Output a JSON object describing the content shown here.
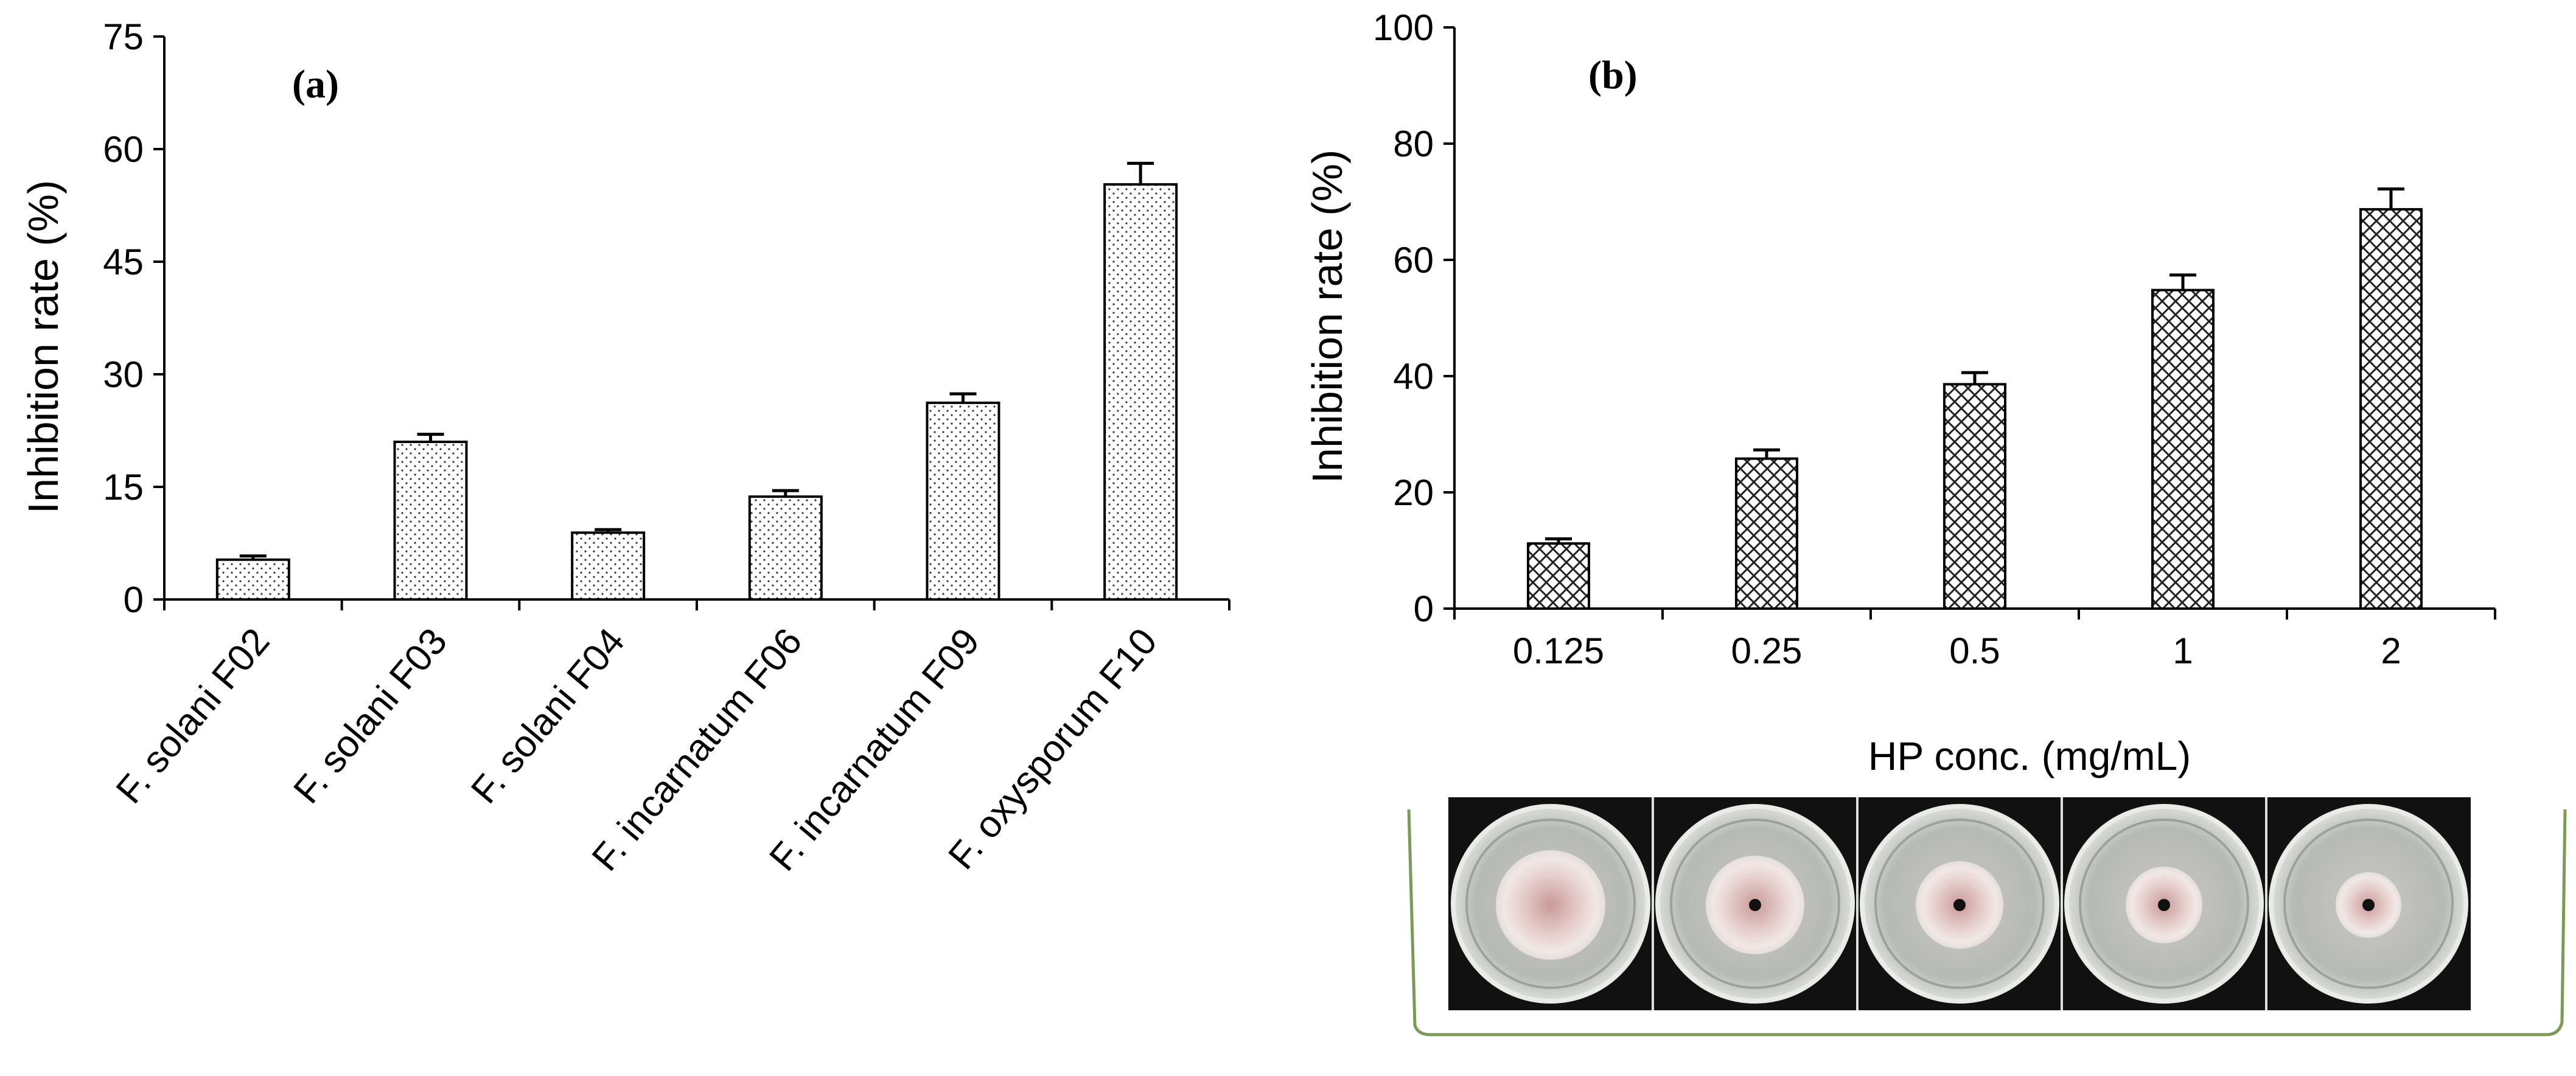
{
  "chart_data": [
    {
      "type": "bar",
      "panel_label": "(a)",
      "categories": [
        "F. solani F02",
        "F. solani F03",
        "F. solani F04",
        "F. incarnatum F06",
        "F. incarnatum F09",
        "F. oxysporum F10"
      ],
      "values": [
        5.3,
        21.0,
        8.9,
        13.7,
        26.2,
        55.3
      ],
      "errors": [
        0.5,
        1.0,
        0.4,
        0.8,
        1.2,
        2.8
      ],
      "ylabel": "Inhibition rate (%)",
      "xlabel": "",
      "ylim": [
        0,
        75
      ],
      "yticks": [
        "0",
        "15",
        "30",
        "45",
        "60",
        "75"
      ],
      "pattern": "dots"
    },
    {
      "type": "bar",
      "panel_label": "(b)",
      "categories": [
        "0.125",
        "0.25",
        "0.5",
        "1",
        "2"
      ],
      "values": [
        11.2,
        25.8,
        38.6,
        54.8,
        68.7
      ],
      "errors": [
        0.8,
        1.5,
        2.0,
        2.6,
        3.5
      ],
      "ylabel": "Inhibition rate (%)",
      "xlabel": "HP conc. (mg/mL)",
      "ylim": [
        0,
        100
      ],
      "yticks": [
        "0",
        "20",
        "40",
        "60",
        "80",
        "100"
      ],
      "pattern": "crosshatch"
    }
  ],
  "photo_strip": {
    "description_count": 5,
    "plates": [
      "0.125",
      "0.25",
      "0.5",
      "1",
      "2"
    ]
  }
}
